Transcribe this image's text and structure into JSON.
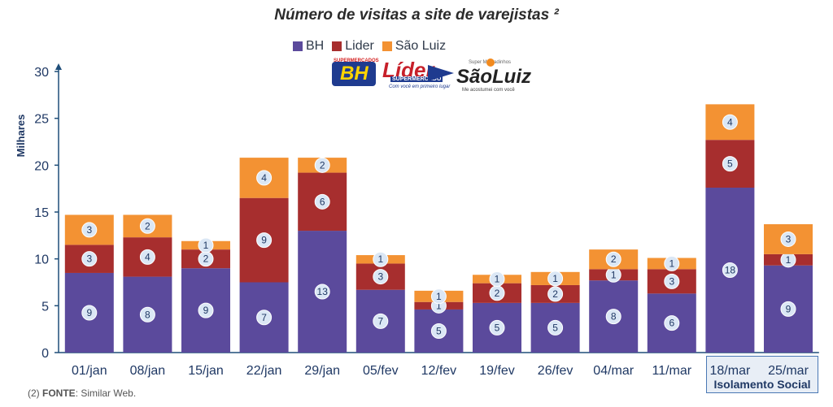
{
  "chart_data": {
    "type": "bar",
    "stacked": true,
    "title": "Número de visitas a site de varejistas ²",
    "ylabel": "Milhares",
    "xlabel": "",
    "ylim": [
      0,
      30
    ],
    "yticks": [
      "0",
      "5",
      "10",
      "15",
      "20",
      "25",
      "30"
    ],
    "categories": [
      "01/jan",
      "08/jan",
      "15/jan",
      "22/jan",
      "29/jan",
      "05/fev",
      "12/fev",
      "19/fev",
      "26/fev",
      "04/mar",
      "11/mar",
      "18/mar",
      "25/mar"
    ],
    "series": [
      {
        "name": "BH",
        "color": "#5b4a9c",
        "values": [
          8.5,
          8.1,
          9.0,
          7.5,
          13.0,
          6.7,
          4.6,
          5.3,
          5.3,
          7.7,
          6.3,
          17.6,
          9.3
        ],
        "labels": [
          "9",
          "8",
          "9",
          "7",
          "13",
          "7",
          "5",
          "5",
          "5",
          "8",
          "6",
          "18",
          "9"
        ]
      },
      {
        "name": "Lider",
        "color": "#a72e2e",
        "values": [
          3.0,
          4.2,
          2.0,
          9.0,
          6.2,
          2.8,
          0.8,
          2.1,
          1.9,
          1.2,
          2.6,
          5.1,
          1.2
        ],
        "labels": [
          "3",
          "4",
          "2",
          "9",
          "6",
          "3",
          "1",
          "2",
          "2",
          "1",
          "3",
          "5",
          "1"
        ]
      },
      {
        "name": "São Luiz",
        "color": "#f39233",
        "values": [
          3.2,
          2.4,
          0.9,
          4.3,
          1.6,
          0.9,
          1.2,
          0.9,
          1.4,
          2.1,
          1.2,
          3.8,
          3.2
        ],
        "labels": [
          "3",
          "2",
          "1",
          "4",
          "2",
          "1",
          "1",
          "1",
          "1",
          "2",
          "1",
          "4",
          "3"
        ]
      }
    ],
    "annotation": "Isolamento Social",
    "legend_position": "top-center",
    "grid": false
  },
  "logos": {
    "bh": {
      "top_text": "SUPERMERCADOS",
      "text": "BH"
    },
    "lider": {
      "text": "Líder",
      "sub": "SUPERMERCADO",
      "tagline": "Com você em primeiro lugar"
    },
    "sao_luiz": {
      "top_text": "Super Mercadinhos",
      "text": "SãoLuiz",
      "tagline": "Me acostumei com você"
    }
  },
  "footer": {
    "prefix": "(2)",
    "label": "FONTE",
    "text": ": Similar Web."
  }
}
